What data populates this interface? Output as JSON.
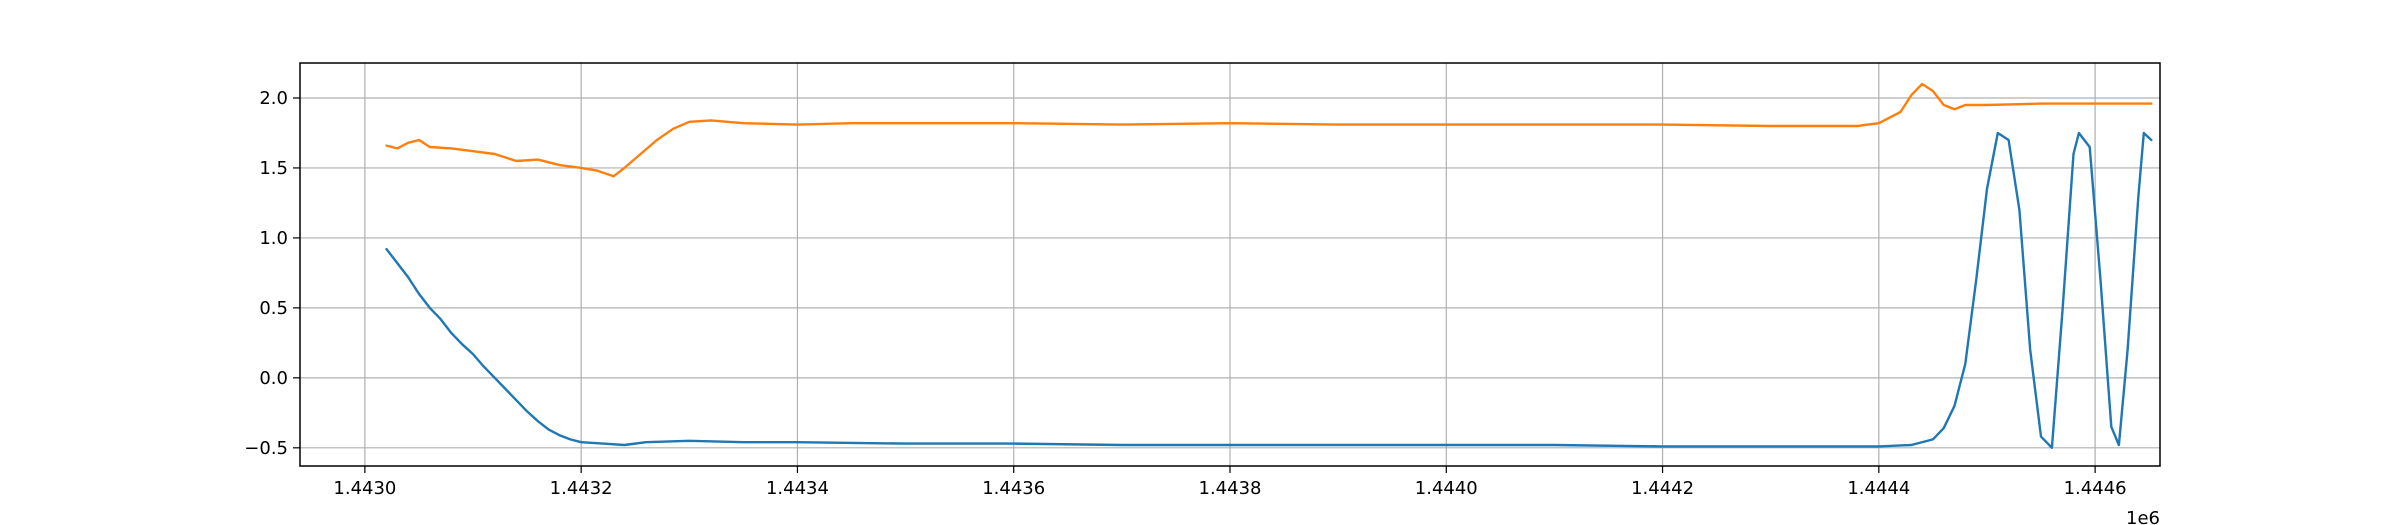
{
  "chart_data": {
    "type": "line",
    "title": "",
    "xlabel": "",
    "ylabel": "",
    "x_offset_label": "1e6",
    "xlim": [
      1442940,
      1444660
    ],
    "ylim": [
      -0.63,
      2.25
    ],
    "grid": true,
    "legend": "none",
    "x_ticks": [
      {
        "value": 1443000,
        "label": "1.4430"
      },
      {
        "value": 1443200,
        "label": "1.4432"
      },
      {
        "value": 1443400,
        "label": "1.4434"
      },
      {
        "value": 1443600,
        "label": "1.4436"
      },
      {
        "value": 1443800,
        "label": "1.4438"
      },
      {
        "value": 1444000,
        "label": "1.4440"
      },
      {
        "value": 1444200,
        "label": "1.4442"
      },
      {
        "value": 1444400,
        "label": "1.4444"
      },
      {
        "value": 1444600,
        "label": "1.4446"
      }
    ],
    "y_ticks": [
      {
        "value": 2.0,
        "label": "2.0"
      },
      {
        "value": 1.5,
        "label": "1.5"
      },
      {
        "value": 1.0,
        "label": "1.0"
      },
      {
        "value": 0.5,
        "label": "0.5"
      },
      {
        "value": 0.0,
        "label": "0.0"
      },
      {
        "value": -0.5,
        "label": "−0.5"
      }
    ],
    "series": [
      {
        "color": "#1f77b4",
        "points": [
          [
            1443020,
            0.92
          ],
          [
            1443030,
            0.82
          ],
          [
            1443040,
            0.72
          ],
          [
            1443050,
            0.6
          ],
          [
            1443060,
            0.5
          ],
          [
            1443070,
            0.42
          ],
          [
            1443080,
            0.32
          ],
          [
            1443090,
            0.24
          ],
          [
            1443100,
            0.17
          ],
          [
            1443110,
            0.08
          ],
          [
            1443120,
            0.0
          ],
          [
            1443130,
            -0.08
          ],
          [
            1443140,
            -0.16
          ],
          [
            1443150,
            -0.24
          ],
          [
            1443160,
            -0.31
          ],
          [
            1443170,
            -0.37
          ],
          [
            1443180,
            -0.41
          ],
          [
            1443190,
            -0.44
          ],
          [
            1443200,
            -0.46
          ],
          [
            1443220,
            -0.47
          ],
          [
            1443240,
            -0.48
          ],
          [
            1443260,
            -0.46
          ],
          [
            1443300,
            -0.45
          ],
          [
            1443350,
            -0.46
          ],
          [
            1443400,
            -0.46
          ],
          [
            1443500,
            -0.47
          ],
          [
            1443600,
            -0.47
          ],
          [
            1443700,
            -0.48
          ],
          [
            1443800,
            -0.48
          ],
          [
            1443900,
            -0.48
          ],
          [
            1444000,
            -0.48
          ],
          [
            1444100,
            -0.48
          ],
          [
            1444200,
            -0.49
          ],
          [
            1444300,
            -0.49
          ],
          [
            1444400,
            -0.49
          ],
          [
            1444430,
            -0.48
          ],
          [
            1444450,
            -0.44
          ],
          [
            1444460,
            -0.36
          ],
          [
            1444470,
            -0.2
          ],
          [
            1444480,
            0.1
          ],
          [
            1444490,
            0.7
          ],
          [
            1444500,
            1.35
          ],
          [
            1444510,
            1.75
          ],
          [
            1444520,
            1.7
          ],
          [
            1444530,
            1.2
          ],
          [
            1444540,
            0.2
          ],
          [
            1444550,
            -0.42
          ],
          [
            1444560,
            -0.5
          ],
          [
            1444570,
            0.5
          ],
          [
            1444580,
            1.6
          ],
          [
            1444585,
            1.75
          ],
          [
            1444595,
            1.65
          ],
          [
            1444605,
            0.7
          ],
          [
            1444615,
            -0.35
          ],
          [
            1444622,
            -0.48
          ],
          [
            1444630,
            0.2
          ],
          [
            1444640,
            1.3
          ],
          [
            1444645,
            1.75
          ],
          [
            1444652,
            1.7
          ]
        ]
      },
      {
        "color": "#ff7f0e",
        "points": [
          [
            1443020,
            1.66
          ],
          [
            1443030,
            1.64
          ],
          [
            1443040,
            1.68
          ],
          [
            1443050,
            1.7
          ],
          [
            1443060,
            1.65
          ],
          [
            1443080,
            1.64
          ],
          [
            1443100,
            1.62
          ],
          [
            1443120,
            1.6
          ],
          [
            1443140,
            1.55
          ],
          [
            1443160,
            1.56
          ],
          [
            1443180,
            1.52
          ],
          [
            1443200,
            1.5
          ],
          [
            1443215,
            1.48
          ],
          [
            1443230,
            1.44
          ],
          [
            1443240,
            1.5
          ],
          [
            1443255,
            1.6
          ],
          [
            1443270,
            1.7
          ],
          [
            1443285,
            1.78
          ],
          [
            1443300,
            1.83
          ],
          [
            1443320,
            1.84
          ],
          [
            1443350,
            1.82
          ],
          [
            1443400,
            1.81
          ],
          [
            1443450,
            1.82
          ],
          [
            1443500,
            1.82
          ],
          [
            1443600,
            1.82
          ],
          [
            1443700,
            1.81
          ],
          [
            1443800,
            1.82
          ],
          [
            1443900,
            1.81
          ],
          [
            1444000,
            1.81
          ],
          [
            1444100,
            1.81
          ],
          [
            1444200,
            1.81
          ],
          [
            1444300,
            1.8
          ],
          [
            1444380,
            1.8
          ],
          [
            1444400,
            1.82
          ],
          [
            1444420,
            1.9
          ],
          [
            1444430,
            2.02
          ],
          [
            1444440,
            2.1
          ],
          [
            1444450,
            2.05
          ],
          [
            1444460,
            1.95
          ],
          [
            1444470,
            1.92
          ],
          [
            1444480,
            1.95
          ],
          [
            1444500,
            1.95
          ],
          [
            1444550,
            1.96
          ],
          [
            1444600,
            1.96
          ],
          [
            1444652,
            1.96
          ]
        ]
      }
    ]
  }
}
